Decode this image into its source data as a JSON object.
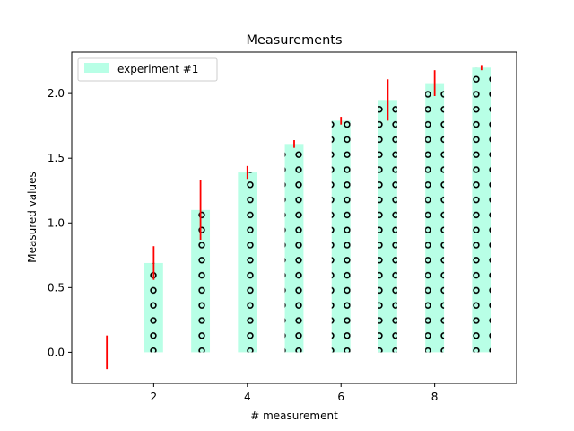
{
  "chart_data": {
    "type": "bar",
    "title": "Measurements",
    "xlabel": "# measurement",
    "ylabel": "Measured values",
    "xlim": [
      0.25,
      9.75
    ],
    "ylim": [
      -0.24,
      2.32
    ],
    "xticks": [
      2,
      4,
      6,
      8
    ],
    "yticks": [
      0.0,
      0.5,
      1.0,
      1.5,
      2.0
    ],
    "x_tick_labels": [
      "2",
      "4",
      "6",
      "8"
    ],
    "y_tick_labels": [
      "0.0",
      "0.5",
      "1.0",
      "1.5",
      "2.0"
    ],
    "legend_position": "upper-left",
    "grid": false,
    "bar_fill_color": "#b8ffe6",
    "hatch": "circles",
    "error_color": "#ff0000",
    "series": [
      {
        "name": "experiment #1",
        "x": [
          1,
          2,
          3,
          4,
          5,
          6,
          7,
          8,
          9
        ],
        "values": [
          0.0,
          0.69,
          1.1,
          1.39,
          1.61,
          1.79,
          1.95,
          2.08,
          2.2
        ],
        "errors": [
          0.13,
          0.13,
          0.23,
          0.05,
          0.03,
          0.03,
          0.16,
          0.1,
          0.02
        ]
      }
    ]
  }
}
